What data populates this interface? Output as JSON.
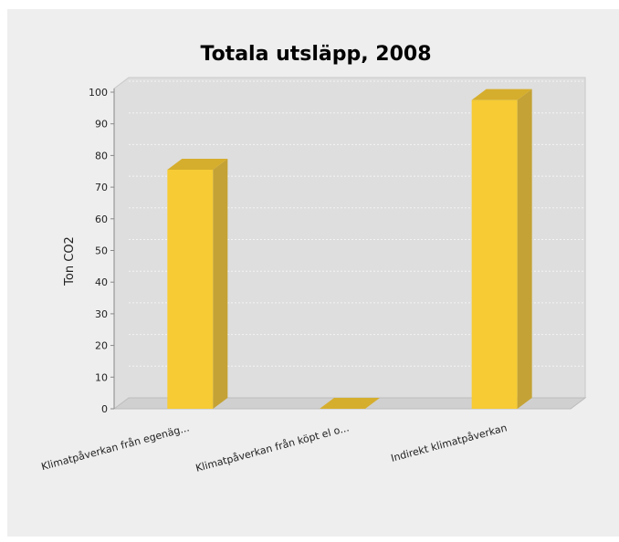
{
  "chart_data": {
    "type": "bar",
    "title": "Totala utsläpp, 2008",
    "xlabel": "",
    "ylabel": "Ton CO2",
    "categories": [
      "Klimatpåverkan från egenäg...",
      "Klimatpåverkan från köpt el o...",
      "Indirekt klimatpåverkan"
    ],
    "values": [
      75.5,
      0,
      97.5
    ],
    "ylim": [
      0,
      100
    ],
    "yticks": [
      0,
      10,
      20,
      30,
      40,
      50,
      60,
      70,
      80,
      90,
      100
    ],
    "grid": true,
    "legend": "none",
    "style": "3d"
  },
  "colors": {
    "bar_front": "#f6cb33",
    "bar_side": "#c4a235",
    "bar_top": "#d6ae2d",
    "plot_back": "#dedede",
    "plot_floor": "#d0d0d0",
    "panel_background": "#eeeeee",
    "gridline": "#f4f4f4"
  }
}
